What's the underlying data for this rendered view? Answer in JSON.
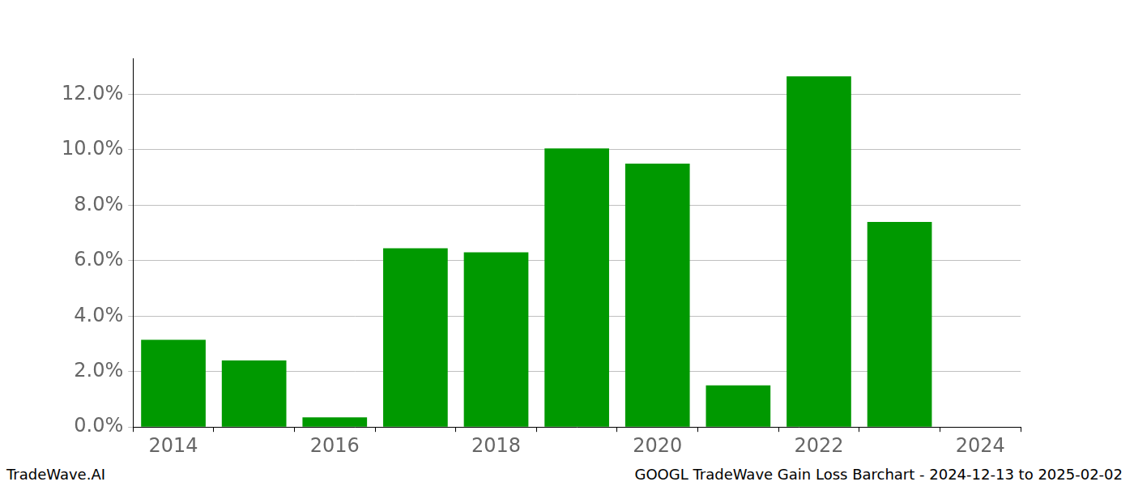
{
  "chart_data": {
    "type": "bar",
    "annotations": [
      "TradeWave.AI",
      "GOOGL TradeWave Gain Loss Barchart - 2024-12-13 to 2025-02-02"
    ],
    "categories": [
      "2014",
      null,
      "2016",
      null,
      "2018",
      null,
      "2020",
      null,
      "2022",
      null,
      "2024"
    ],
    "values": [
      3.15,
      2.4,
      0.35,
      6.45,
      6.3,
      10.05,
      9.5,
      1.5,
      12.65,
      7.4,
      null
    ],
    "color": "#009900",
    "ylim": [
      0,
      13.3
    ],
    "yticks": [
      {
        "value": 0,
        "label": "0.0%"
      },
      {
        "value": 2,
        "label": "2.0%"
      },
      {
        "value": 4,
        "label": "4.0%"
      },
      {
        "value": 6,
        "label": "6.0%"
      },
      {
        "value": 8,
        "label": "8.0%"
      },
      {
        "value": 10,
        "label": "10.0%"
      },
      {
        "value": 12,
        "label": "12.0%"
      }
    ],
    "grid": true
  }
}
